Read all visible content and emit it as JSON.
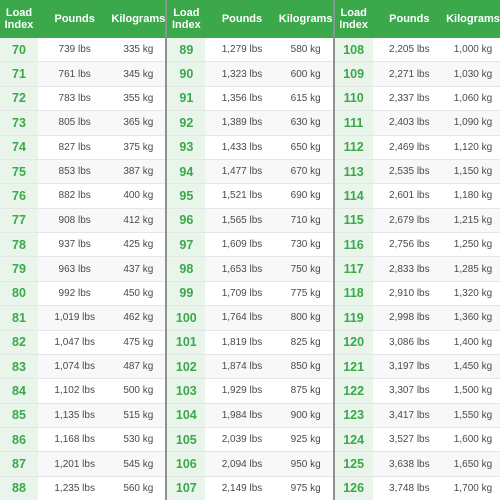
{
  "headers": {
    "index": "Load Index",
    "pounds": "Pounds",
    "kilograms": "Kilograms"
  },
  "groups": [
    {
      "rows": [
        {
          "index": "70",
          "pounds": "739 lbs",
          "kg": "335 kg"
        },
        {
          "index": "71",
          "pounds": "761 lbs",
          "kg": "345 kg"
        },
        {
          "index": "72",
          "pounds": "783 lbs",
          "kg": "355 kg"
        },
        {
          "index": "73",
          "pounds": "805 lbs",
          "kg": "365 kg"
        },
        {
          "index": "74",
          "pounds": "827 lbs",
          "kg": "375 kg"
        },
        {
          "index": "75",
          "pounds": "853 lbs",
          "kg": "387 kg"
        },
        {
          "index": "76",
          "pounds": "882 lbs",
          "kg": "400 kg"
        },
        {
          "index": "77",
          "pounds": "908 lbs",
          "kg": "412 kg"
        },
        {
          "index": "78",
          "pounds": "937 lbs",
          "kg": "425 kg"
        },
        {
          "index": "79",
          "pounds": "963 lbs",
          "kg": "437 kg"
        },
        {
          "index": "80",
          "pounds": "992 lbs",
          "kg": "450 kg"
        },
        {
          "index": "81",
          "pounds": "1,019 lbs",
          "kg": "462 kg"
        },
        {
          "index": "82",
          "pounds": "1,047 lbs",
          "kg": "475 kg"
        },
        {
          "index": "83",
          "pounds": "1,074 lbs",
          "kg": "487 kg"
        },
        {
          "index": "84",
          "pounds": "1,102 lbs",
          "kg": "500 kg"
        },
        {
          "index": "85",
          "pounds": "1,135 lbs",
          "kg": "515 kg"
        },
        {
          "index": "86",
          "pounds": "1,168 lbs",
          "kg": "530 kg"
        },
        {
          "index": "87",
          "pounds": "1,201 lbs",
          "kg": "545 kg"
        },
        {
          "index": "88",
          "pounds": "1,235 lbs",
          "kg": "560 kg"
        }
      ]
    },
    {
      "rows": [
        {
          "index": "89",
          "pounds": "1,279 lbs",
          "kg": "580 kg"
        },
        {
          "index": "90",
          "pounds": "1,323 lbs",
          "kg": "600 kg"
        },
        {
          "index": "91",
          "pounds": "1,356 lbs",
          "kg": "615 kg"
        },
        {
          "index": "92",
          "pounds": "1,389 lbs",
          "kg": "630 kg"
        },
        {
          "index": "93",
          "pounds": "1,433 lbs",
          "kg": "650 kg"
        },
        {
          "index": "94",
          "pounds": "1,477 lbs",
          "kg": "670 kg"
        },
        {
          "index": "95",
          "pounds": "1,521 lbs",
          "kg": "690 kg"
        },
        {
          "index": "96",
          "pounds": "1,565 lbs",
          "kg": "710 kg"
        },
        {
          "index": "97",
          "pounds": "1,609 lbs",
          "kg": "730 kg"
        },
        {
          "index": "98",
          "pounds": "1,653 lbs",
          "kg": "750 kg"
        },
        {
          "index": "99",
          "pounds": "1,709 lbs",
          "kg": "775 kg"
        },
        {
          "index": "100",
          "pounds": "1,764 lbs",
          "kg": "800 kg"
        },
        {
          "index": "101",
          "pounds": "1,819 lbs",
          "kg": "825 kg"
        },
        {
          "index": "102",
          "pounds": "1,874 lbs",
          "kg": "850 kg"
        },
        {
          "index": "103",
          "pounds": "1,929 lbs",
          "kg": "875 kg"
        },
        {
          "index": "104",
          "pounds": "1,984 lbs",
          "kg": "900 kg"
        },
        {
          "index": "105",
          "pounds": "2,039 lbs",
          "kg": "925 kg"
        },
        {
          "index": "106",
          "pounds": "2,094 lbs",
          "kg": "950 kg"
        },
        {
          "index": "107",
          "pounds": "2,149 lbs",
          "kg": "975 kg"
        }
      ]
    },
    {
      "rows": [
        {
          "index": "108",
          "pounds": "2,205 lbs",
          "kg": "1,000 kg"
        },
        {
          "index": "109",
          "pounds": "2,271 lbs",
          "kg": "1,030 kg"
        },
        {
          "index": "110",
          "pounds": "2,337 lbs",
          "kg": "1,060 kg"
        },
        {
          "index": "111",
          "pounds": "2,403 lbs",
          "kg": "1,090 kg"
        },
        {
          "index": "112",
          "pounds": "2,469 lbs",
          "kg": "1,120 kg"
        },
        {
          "index": "113",
          "pounds": "2,535 lbs",
          "kg": "1,150 kg"
        },
        {
          "index": "114",
          "pounds": "2,601 lbs",
          "kg": "1,180 kg"
        },
        {
          "index": "115",
          "pounds": "2,679 lbs",
          "kg": "1,215 kg"
        },
        {
          "index": "116",
          "pounds": "2,756 lbs",
          "kg": "1,250 kg"
        },
        {
          "index": "117",
          "pounds": "2,833 lbs",
          "kg": "1,285 kg"
        },
        {
          "index": "118",
          "pounds": "2,910 lbs",
          "kg": "1,320 kg"
        },
        {
          "index": "119",
          "pounds": "2,998 lbs",
          "kg": "1,360 kg"
        },
        {
          "index": "120",
          "pounds": "3,086 lbs",
          "kg": "1,400 kg"
        },
        {
          "index": "121",
          "pounds": "3,197 lbs",
          "kg": "1,450 kg"
        },
        {
          "index": "122",
          "pounds": "3,307 lbs",
          "kg": "1,500 kg"
        },
        {
          "index": "123",
          "pounds": "3,417 lbs",
          "kg": "1,550 kg"
        },
        {
          "index": "124",
          "pounds": "3,527 lbs",
          "kg": "1,600 kg"
        },
        {
          "index": "125",
          "pounds": "3,638 lbs",
          "kg": "1,650 kg"
        },
        {
          "index": "126",
          "pounds": "3,748 lbs",
          "kg": "1,700 kg"
        }
      ]
    }
  ]
}
